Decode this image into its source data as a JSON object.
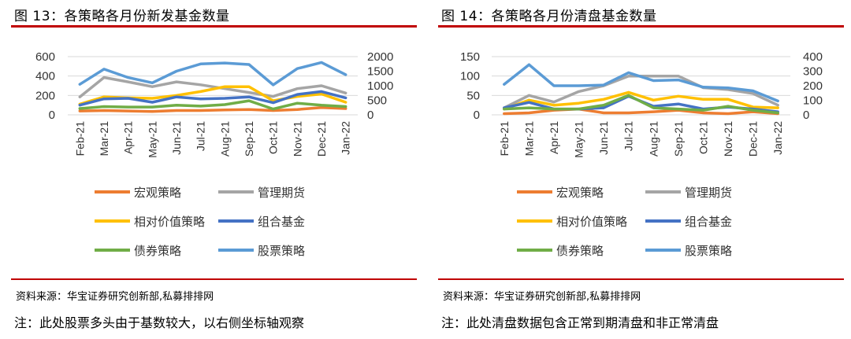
{
  "charts": [
    {
      "id": "left",
      "title": "图 13：各策略各月份新发基金数量",
      "source": "资料来源：华宝证券研究创新部,私募排排网",
      "note": "注：此处股票多头由于基数较大，以右侧坐标轴观察"
    },
    {
      "id": "right",
      "title": "图 14：各策略各月份清盘基金数量",
      "source": "资料来源：华宝证券研究创新部,私募排排网",
      "note": "注：此处清盘数据包含正常到期清盘和非正常清盘"
    }
  ],
  "chart_data": [
    {
      "type": "line",
      "title": "图 13：各策略各月份新发基金数量",
      "categories": [
        "Feb-21",
        "Mar-21",
        "Apr-21",
        "May-21",
        "Jun-21",
        "Jul-21",
        "Aug-21",
        "Sep-21",
        "Oct-21",
        "Nov-21",
        "Dec-21",
        "Jan-22"
      ],
      "ylim": [
        0,
        600
      ],
      "yticks": [
        0,
        200,
        400,
        600
      ],
      "y2lim": [
        0,
        2000
      ],
      "y2ticks": [
        0,
        500,
        1000,
        1500,
        2000
      ],
      "grid": true,
      "legend_position": "bottom",
      "series": [
        {
          "name": "宏观策略",
          "color": "#ed7d31",
          "axis": "left",
          "values": [
            40,
            45,
            40,
            35,
            45,
            45,
            50,
            55,
            45,
            55,
            75,
            65
          ]
        },
        {
          "name": "管理期货",
          "color": "#a5a5a5",
          "axis": "left",
          "values": [
            185,
            385,
            340,
            290,
            340,
            310,
            270,
            230,
            190,
            270,
            300,
            225
          ]
        },
        {
          "name": "相对价值策略",
          "color": "#ffc000",
          "axis": "left",
          "values": [
            110,
            185,
            175,
            170,
            200,
            240,
            290,
            290,
            145,
            190,
            215,
            130
          ]
        },
        {
          "name": "组合基金",
          "color": "#4472c4",
          "axis": "left",
          "values": [
            100,
            165,
            170,
            130,
            185,
            165,
            170,
            185,
            125,
            210,
            240,
            175
          ]
        },
        {
          "name": "债券策略",
          "color": "#70ad47",
          "axis": "left",
          "values": [
            65,
            85,
            80,
            80,
            100,
            90,
            105,
            145,
            60,
            120,
            100,
            85
          ]
        },
        {
          "name": "股票策略",
          "color": "#5b9bd5",
          "axis": "right",
          "values": [
            1050,
            1570,
            1280,
            1100,
            1500,
            1750,
            1780,
            1730,
            1030,
            1590,
            1800,
            1380
          ]
        }
      ]
    },
    {
      "type": "line",
      "title": "图 14：各策略各月份清盘基金数量",
      "categories": [
        "Feb-21",
        "Mar-21",
        "Apr-21",
        "May-21",
        "Jun-21",
        "Jul-21",
        "Aug-21",
        "Sep-21",
        "Oct-21",
        "Nov-21",
        "Dec-21",
        "Jan-22"
      ],
      "ylim": [
        0,
        150
      ],
      "yticks": [
        0,
        50,
        100,
        150
      ],
      "y2lim": [
        0,
        400
      ],
      "y2ticks": [
        0,
        100,
        200,
        300,
        400
      ],
      "grid": true,
      "legend_position": "bottom",
      "series": [
        {
          "name": "宏观策略",
          "color": "#ed7d31",
          "axis": "left",
          "values": [
            3,
            5,
            12,
            15,
            5,
            5,
            8,
            12,
            5,
            3,
            8,
            3
          ]
        },
        {
          "name": "管理期货",
          "color": "#a5a5a5",
          "axis": "left",
          "values": [
            18,
            50,
            33,
            60,
            75,
            100,
            100,
            100,
            70,
            65,
            55,
            25
          ]
        },
        {
          "name": "相对价值策略",
          "color": "#ffc000",
          "axis": "left",
          "values": [
            15,
            38,
            25,
            30,
            40,
            58,
            38,
            48,
            40,
            40,
            20,
            18
          ]
        },
        {
          "name": "组合基金",
          "color": "#4472c4",
          "axis": "left",
          "values": [
            18,
            32,
            15,
            15,
            18,
            48,
            22,
            28,
            15,
            20,
            15,
            8
          ]
        },
        {
          "name": "债券策略",
          "color": "#70ad47",
          "axis": "left",
          "values": [
            15,
            18,
            15,
            15,
            25,
            50,
            18,
            15,
            12,
            22,
            12,
            5
          ]
        },
        {
          "name": "股票策略",
          "color": "#5b9bd5",
          "axis": "right",
          "values": [
            210,
            345,
            200,
            200,
            205,
            290,
            235,
            240,
            190,
            185,
            165,
            95
          ]
        }
      ]
    }
  ]
}
